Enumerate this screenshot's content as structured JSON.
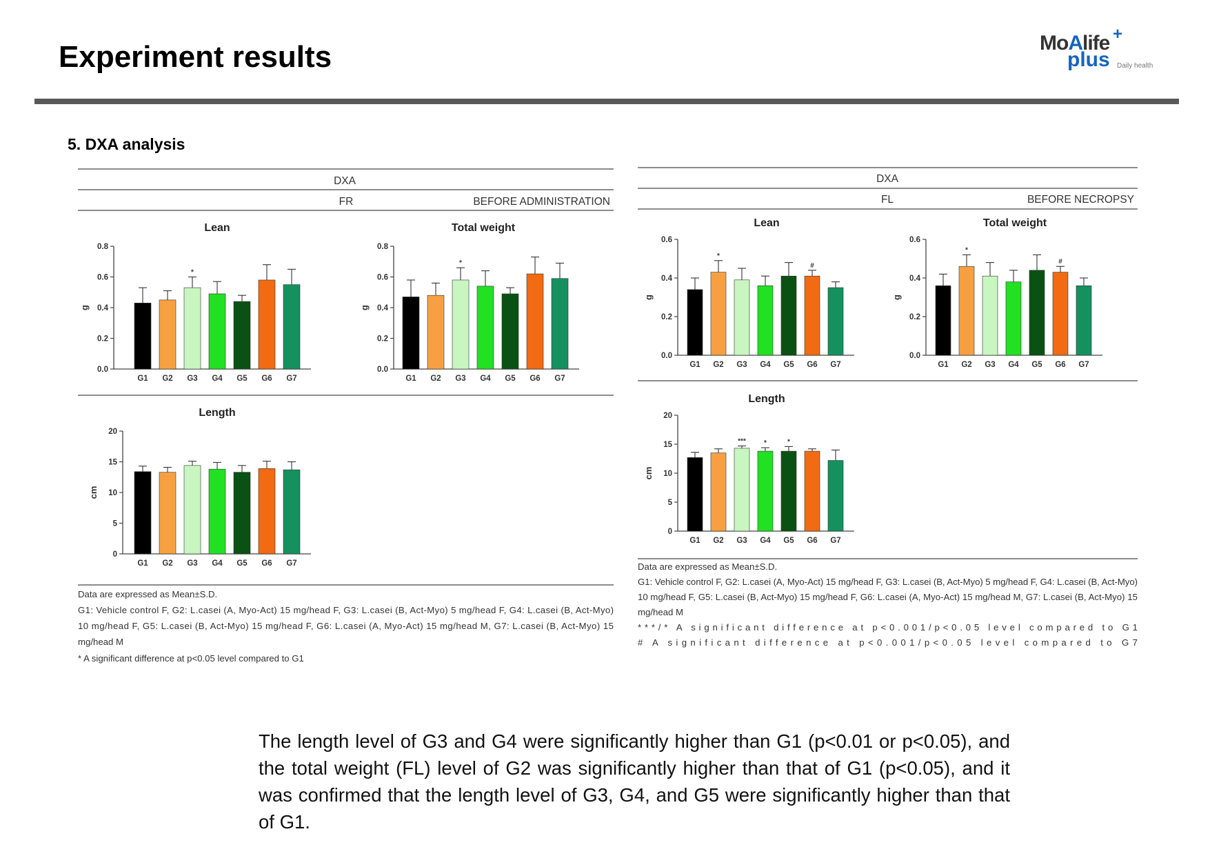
{
  "slide": {
    "title": "Experiment results",
    "section": "5. DXA analysis",
    "description": "The length level of G3 and G4 were significantly higher than G1 (p<0.01 or p<0.05), and the total weight (FL) level of G2 was significantly higher than that of G1 (p<0.05), and it was confirmed that the length level of G3, G4, and G5 were significantly higher than that of G1."
  },
  "logo": {
    "line1a": "Mo",
    "line1b": "A",
    "line1c": "life",
    "plus_sign": "+",
    "line2": "plus",
    "tagline": "Daily health"
  },
  "colors": [
    "#000000",
    "#f7a042",
    "#c8f5c0",
    "#22e022",
    "#0a5214",
    "#f26a12",
    "#14915e"
  ],
  "panels": [
    {
      "heading": "DXA",
      "subheading": "FR",
      "timepoint": "BEFORE ADMINISTRATION",
      "footnotes": [
        "Data are expressed as Mean±S.D.",
        "G1: Vehicle control F, G2: L.casei (A, Myo-Act) 15 mg/head F, G3: L.casei (B, Act-Myo) 5 mg/head F, G4: L.casei (B, Act-Myo)",
        "10 mg/head F, G5: L.casei (B, Act-Myo) 15 mg/head F, G6: L.casei (A, Myo-Act) 15 mg/head M, G7: L.casei (B, Act-Myo) 15",
        "mg/head M",
        "* A significant difference at p<0.05 level compared to G1"
      ]
    },
    {
      "heading": "DXA",
      "subheading": "FL",
      "timepoint": "BEFORE NECROPSY",
      "footnotes": [
        "Data are expressed as Mean±S.D.",
        "G1: Vehicle control F, G2: L.casei (A, Myo-Act) 15 mg/head F, G3: L.casei (B, Act-Myo) 5 mg/head F, G4: L.casei (B, Act-Myo)",
        "10 mg/head F, G5: L.casei (B, Act-Myo) 15 mg/head F, G6: L.casei (A, Myo-Act) 15 mg/head M, G7: L.casei (B, Act-Myo) 15",
        "mg/head M",
        "***/* A significant difference at p<0.001/p<0.05 level compared to G1",
        "# A significant difference at p<0.001/p<0.05 level compared to G7"
      ]
    }
  ],
  "chart_data": [
    {
      "type": "bar",
      "title": "Lean",
      "ylabel": "g",
      "ylim": [
        0,
        0.8
      ],
      "yticks": [
        0.0,
        0.2,
        0.4,
        0.6,
        0.8
      ],
      "yticklabels": [
        "0.0",
        "0.2",
        "0.4",
        "0.6",
        "0.8"
      ],
      "categories": [
        "G1",
        "G2",
        "G3",
        "G4",
        "G5",
        "G6",
        "G7"
      ],
      "values": [
        0.43,
        0.45,
        0.53,
        0.49,
        0.44,
        0.58,
        0.55
      ],
      "errors": [
        0.1,
        0.06,
        0.07,
        0.08,
        0.04,
        0.1,
        0.1
      ],
      "marks": [
        "",
        "",
        "*",
        "",
        "",
        "",
        ""
      ]
    },
    {
      "type": "bar",
      "title": "Total weight",
      "ylabel": "g",
      "ylim": [
        0,
        0.8
      ],
      "yticks": [
        0.0,
        0.2,
        0.4,
        0.6,
        0.8
      ],
      "yticklabels": [
        "0.0",
        "0.2",
        "0.4",
        "0.6",
        "0.8"
      ],
      "categories": [
        "G1",
        "G2",
        "G3",
        "G4",
        "G5",
        "G6",
        "G7"
      ],
      "values": [
        0.47,
        0.48,
        0.58,
        0.54,
        0.49,
        0.62,
        0.59
      ],
      "errors": [
        0.11,
        0.08,
        0.08,
        0.1,
        0.04,
        0.11,
        0.1
      ],
      "marks": [
        "",
        "",
        "*",
        "",
        "",
        "",
        ""
      ]
    },
    {
      "type": "bar",
      "title": "Length",
      "ylabel": "cm",
      "ylim": [
        0,
        20
      ],
      "yticks": [
        0,
        5,
        10,
        15,
        20
      ],
      "yticklabels": [
        "0",
        "5",
        "10",
        "15",
        "20"
      ],
      "categories": [
        "G1",
        "G2",
        "G3",
        "G4",
        "G5",
        "G6",
        "G7"
      ],
      "values": [
        13.4,
        13.3,
        14.4,
        13.8,
        13.3,
        13.9,
        13.7
      ],
      "errors": [
        0.9,
        0.8,
        0.7,
        1.1,
        1.1,
        1.2,
        1.3
      ],
      "marks": [
        "",
        "",
        "",
        "",
        "",
        "",
        ""
      ]
    },
    {
      "type": "bar",
      "title": "Lean",
      "ylabel": "g",
      "ylim": [
        0,
        0.6
      ],
      "yticks": [
        0.0,
        0.2,
        0.4,
        0.6
      ],
      "yticklabels": [
        "0.0",
        "0.2",
        "0.4",
        "0.6"
      ],
      "categories": [
        "G1",
        "G2",
        "G3",
        "G4",
        "G5",
        "G6",
        "G7"
      ],
      "values": [
        0.34,
        0.43,
        0.39,
        0.36,
        0.41,
        0.41,
        0.35
      ],
      "errors": [
        0.06,
        0.06,
        0.06,
        0.05,
        0.07,
        0.03,
        0.03
      ],
      "marks": [
        "",
        "*",
        "",
        "",
        "",
        "#",
        ""
      ]
    },
    {
      "type": "bar",
      "title": "Total weight",
      "ylabel": "g",
      "ylim": [
        0,
        0.6
      ],
      "yticks": [
        0.0,
        0.2,
        0.4,
        0.6
      ],
      "yticklabels": [
        "0.0",
        "0.2",
        "0.4",
        "0.6"
      ],
      "categories": [
        "G1",
        "G2",
        "G3",
        "G4",
        "G5",
        "G6",
        "G7"
      ],
      "values": [
        0.36,
        0.46,
        0.41,
        0.38,
        0.44,
        0.43,
        0.36
      ],
      "errors": [
        0.06,
        0.06,
        0.07,
        0.06,
        0.08,
        0.03,
        0.04
      ],
      "marks": [
        "",
        "*",
        "",
        "",
        "",
        "#",
        ""
      ]
    },
    {
      "type": "bar",
      "title": "Length",
      "ylabel": "cm",
      "ylim": [
        0,
        20
      ],
      "yticks": [
        0,
        5,
        10,
        15,
        20
      ],
      "yticklabels": [
        "0",
        "5",
        "10",
        "15",
        "20"
      ],
      "categories": [
        "G1",
        "G2",
        "G3",
        "G4",
        "G5",
        "G6",
        "G7"
      ],
      "values": [
        12.7,
        13.5,
        14.3,
        13.8,
        13.8,
        13.8,
        12.2
      ],
      "errors": [
        0.9,
        0.7,
        0.4,
        0.6,
        0.8,
        0.4,
        1.8
      ],
      "marks": [
        "",
        "",
        "***",
        "*",
        "*",
        "",
        ""
      ]
    }
  ]
}
